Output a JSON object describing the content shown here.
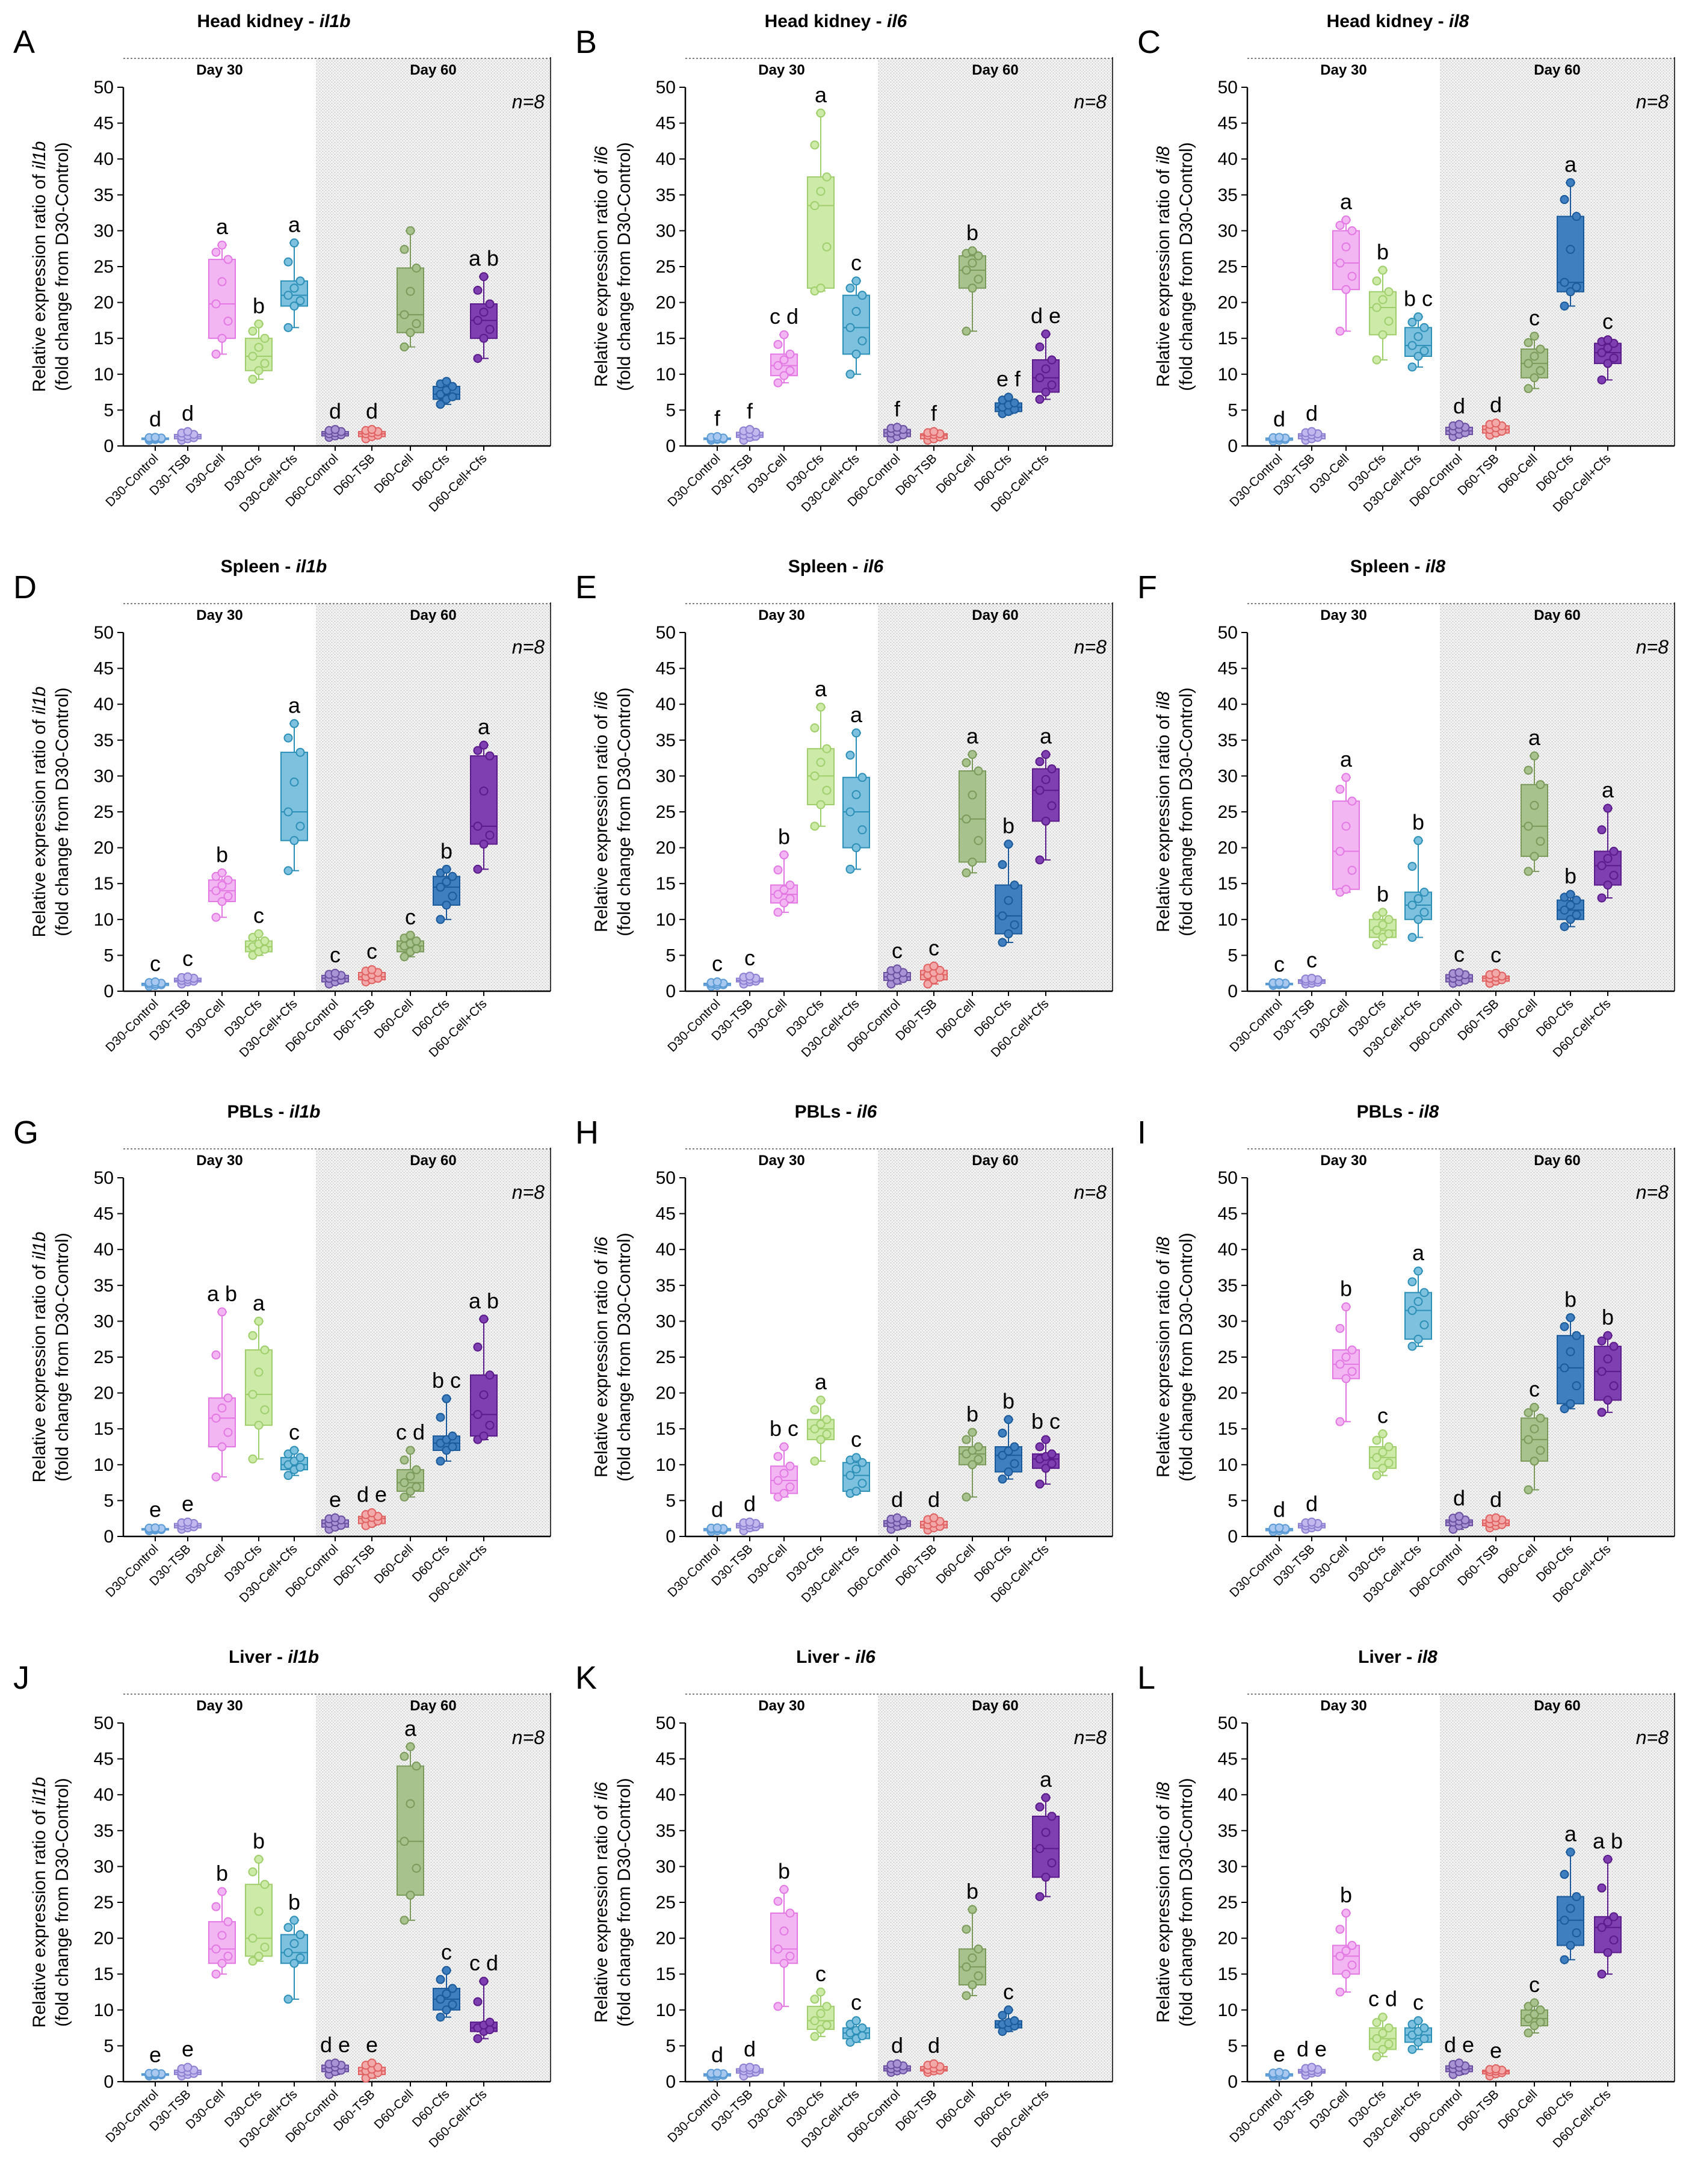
{
  "figure": {
    "common": {
      "categories": [
        "D30-Control",
        "D30-TSB",
        "D30-Cell",
        "D30-Cfs",
        "D30-Cell+Cfs",
        "D60-Control",
        "D60-TSB",
        "D60-Cell",
        "D60-Cfs",
        "D60-Cell+Cfs"
      ],
      "day_labels": [
        "Day 30",
        "Day 60"
      ],
      "n_label": "n=8",
      "ylim": [
        0,
        50
      ],
      "yticks": [
        0,
        5,
        10,
        15,
        20,
        25,
        30,
        35,
        40,
        45,
        50
      ],
      "ylabel_line2": "(fold change from D30-Control)",
      "colors": [
        "#5b9bd5",
        "#8c7fd1",
        "#e377e3",
        "#9fcf6a",
        "#2b8fb8",
        "#6a4fa0",
        "#e06060",
        "#7a9a5a",
        "#1a5a9a",
        "#5a1a8a"
      ],
      "fills": [
        "#a9c8ef",
        "#c2b8ee",
        "#f2b7f2",
        "#cdeaa8",
        "#7ec1de",
        "#a894d4",
        "#f2a9a9",
        "#a8c28e",
        "#3f7fc0",
        "#7e3fb0"
      ]
    }
  },
  "chart_data": [
    {
      "panel": "A",
      "type": "box",
      "title_prefix": "Head kidney - ",
      "gene": "il1b",
      "ylabel_prefix": "Relative expression ratio of ",
      "boxes": [
        [
          0.8,
          0.9,
          1.0,
          1.1,
          1.2
        ],
        [
          0.8,
          1.0,
          1.3,
          1.6,
          2.0
        ],
        [
          12.8,
          15.0,
          19.8,
          26.0,
          28.0
        ],
        [
          9.3,
          10.5,
          12.5,
          15.0,
          17.0
        ],
        [
          16.5,
          19.5,
          21.0,
          23.0,
          28.3
        ],
        [
          1.2,
          1.4,
          1.7,
          2.0,
          2.3
        ],
        [
          1.0,
          1.3,
          1.7,
          2.0,
          2.3
        ],
        [
          13.8,
          15.8,
          18.3,
          24.8,
          30.0
        ],
        [
          5.8,
          6.5,
          7.2,
          8.3,
          9.0
        ],
        [
          12.2,
          15.0,
          17.5,
          19.8,
          23.6
        ]
      ],
      "letters": [
        "d",
        "d",
        "a",
        "b",
        "a",
        "d",
        "d",
        "",
        "",
        "a b"
      ]
    },
    {
      "panel": "B",
      "type": "box",
      "title_prefix": "Head kidney - ",
      "gene": "il6",
      "ylabel_prefix": "Relative expression ratio of ",
      "boxes": [
        [
          0.8,
          0.9,
          1.0,
          1.1,
          1.3
        ],
        [
          0.8,
          1.2,
          1.5,
          1.9,
          2.3
        ],
        [
          8.8,
          9.8,
          11.2,
          12.8,
          15.5
        ],
        [
          21.6,
          22.0,
          33.5,
          37.5,
          46.4
        ],
        [
          10.0,
          12.8,
          16.5,
          21.0,
          23.0
        ],
        [
          1.0,
          1.3,
          1.8,
          2.3,
          2.6
        ],
        [
          0.8,
          1.0,
          1.5,
          1.7,
          2.0
        ],
        [
          16.0,
          22.0,
          24.5,
          26.5,
          27.2
        ],
        [
          4.5,
          4.8,
          5.4,
          6.0,
          6.8
        ],
        [
          6.5,
          7.5,
          9.5,
          12.0,
          15.6
        ]
      ],
      "letters": [
        "f",
        "f",
        "c d",
        "a",
        "c",
        "f",
        "f",
        "b",
        "e f",
        "d e"
      ]
    },
    {
      "panel": "C",
      "type": "box",
      "title_prefix": "Head kidney - ",
      "gene": "il8",
      "ylabel_prefix": "Relative expression ratio of ",
      "boxes": [
        [
          0.7,
          0.8,
          1.0,
          1.1,
          1.2
        ],
        [
          0.8,
          1.0,
          1.4,
          1.7,
          2.0
        ],
        [
          16.0,
          21.8,
          25.5,
          30.0,
          31.5
        ],
        [
          12.0,
          15.5,
          19.3,
          21.5,
          24.5
        ],
        [
          11.0,
          12.5,
          14.0,
          16.5,
          18.0
        ],
        [
          1.3,
          1.6,
          2.1,
          2.6,
          3.0
        ],
        [
          1.5,
          1.8,
          2.3,
          2.8,
          3.2
        ],
        [
          8.0,
          9.5,
          11.5,
          13.5,
          15.3
        ],
        [
          19.5,
          21.5,
          22.8,
          32.0,
          36.7
        ],
        [
          9.2,
          11.5,
          13.0,
          14.3,
          14.8
        ]
      ],
      "letters": [
        "d",
        "d",
        "a",
        "b",
        "b c",
        "d",
        "d",
        "c",
        "a",
        "c"
      ]
    },
    {
      "panel": "D",
      "type": "box",
      "title_prefix": "Spleen - ",
      "gene": "il1b",
      "ylabel_prefix": "Relative expression ratio of ",
      "boxes": [
        [
          0.7,
          0.8,
          1.0,
          1.1,
          1.3
        ],
        [
          1.0,
          1.3,
          1.5,
          1.8,
          2.0
        ],
        [
          10.3,
          12.5,
          14.0,
          15.5,
          16.5
        ],
        [
          5.0,
          5.5,
          6.2,
          7.0,
          8.0
        ],
        [
          16.8,
          21.0,
          25.0,
          33.3,
          37.3
        ],
        [
          1.0,
          1.3,
          1.8,
          2.2,
          2.5
        ],
        [
          1.3,
          1.6,
          2.0,
          2.6,
          3.0
        ],
        [
          4.8,
          5.5,
          6.3,
          7.0,
          7.8
        ],
        [
          10.0,
          12.0,
          14.5,
          16.0,
          17.0
        ],
        [
          17.0,
          20.5,
          23.0,
          32.8,
          34.3
        ]
      ],
      "letters": [
        "c",
        "c",
        "b",
        "c",
        "a",
        "c",
        "c",
        "c",
        "b",
        "a"
      ]
    },
    {
      "panel": "E",
      "type": "box",
      "title_prefix": "Spleen - ",
      "gene": "il6",
      "ylabel_prefix": "Relative expression ratio of ",
      "boxes": [
        [
          0.7,
          0.8,
          1.0,
          1.1,
          1.3
        ],
        [
          1.0,
          1.3,
          1.5,
          1.8,
          2.1
        ],
        [
          11.0,
          12.3,
          13.5,
          14.8,
          19.0
        ],
        [
          23.0,
          26.0,
          30.0,
          33.8,
          39.6
        ],
        [
          17.0,
          20.0,
          25.0,
          29.8,
          36.0
        ],
        [
          1.0,
          1.5,
          2.0,
          2.6,
          3.1
        ],
        [
          1.0,
          1.6,
          2.3,
          2.9,
          3.5
        ],
        [
          16.5,
          18.0,
          24.0,
          30.7,
          33.0
        ],
        [
          6.8,
          8.0,
          10.5,
          14.8,
          20.5
        ],
        [
          18.3,
          23.7,
          28.0,
          31.0,
          33.0
        ]
      ],
      "letters": [
        "c",
        "c",
        "b",
        "a",
        "a",
        "c",
        "c",
        "a",
        "b",
        "a"
      ]
    },
    {
      "panel": "F",
      "type": "box",
      "title_prefix": "Spleen - ",
      "gene": "il8",
      "ylabel_prefix": "Relative expression ratio of ",
      "boxes": [
        [
          0.8,
          0.9,
          1.0,
          1.1,
          1.2
        ],
        [
          1.0,
          1.1,
          1.4,
          1.6,
          1.8
        ],
        [
          13.8,
          14.2,
          19.5,
          26.5,
          29.8
        ],
        [
          6.5,
          7.5,
          8.5,
          10.0,
          11.0
        ],
        [
          7.5,
          10.0,
          12.0,
          13.8,
          21.0
        ],
        [
          1.1,
          1.3,
          1.8,
          2.3,
          2.6
        ],
        [
          1.1,
          1.4,
          1.8,
          2.1,
          2.5
        ],
        [
          16.7,
          18.8,
          23.0,
          28.8,
          32.8
        ],
        [
          9.0,
          10.0,
          11.3,
          12.7,
          13.5
        ],
        [
          13.0,
          14.8,
          17.5,
          19.5,
          25.5
        ]
      ],
      "letters": [
        "c",
        "c",
        "a",
        "b",
        "b",
        "c",
        "c",
        "a",
        "b",
        "a"
      ]
    },
    {
      "panel": "G",
      "type": "box",
      "title_prefix": "PBLs - ",
      "gene": "il1b",
      "ylabel_prefix": "Relative expression ratio of ",
      "boxes": [
        [
          0.8,
          0.9,
          1.0,
          1.1,
          1.2
        ],
        [
          1.0,
          1.2,
          1.5,
          1.8,
          2.0
        ],
        [
          8.3,
          12.5,
          16.5,
          19.3,
          31.3
        ],
        [
          10.8,
          15.5,
          19.8,
          26.0,
          30.0
        ],
        [
          8.5,
          9.3,
          10.0,
          11.0,
          12.0
        ],
        [
          1.0,
          1.3,
          1.8,
          2.3,
          2.6
        ],
        [
          1.5,
          1.8,
          2.5,
          2.8,
          3.3
        ],
        [
          5.5,
          6.3,
          7.5,
          9.3,
          12.0
        ],
        [
          10.5,
          12.0,
          13.0,
          14.0,
          19.2
        ],
        [
          13.5,
          14.0,
          17.0,
          22.5,
          30.3
        ]
      ],
      "letters": [
        "e",
        "e",
        "a b",
        "a",
        "c",
        "e",
        "d e",
        "c d",
        "b c",
        "a b"
      ]
    },
    {
      "panel": "H",
      "type": "box",
      "title_prefix": "PBLs - ",
      "gene": "il6",
      "ylabel_prefix": "Relative expression ratio of ",
      "boxes": [
        [
          0.7,
          0.8,
          1.0,
          1.1,
          1.2
        ],
        [
          0.8,
          1.2,
          1.5,
          1.8,
          2.0
        ],
        [
          5.5,
          6.0,
          7.8,
          9.8,
          12.5
        ],
        [
          10.5,
          13.5,
          15.0,
          16.3,
          19.0
        ],
        [
          6.0,
          6.3,
          8.5,
          10.3,
          11.0
        ],
        [
          1.0,
          1.4,
          1.8,
          2.2,
          2.6
        ],
        [
          0.9,
          1.2,
          1.6,
          2.1,
          2.6
        ],
        [
          5.5,
          10.0,
          11.5,
          12.5,
          14.5
        ],
        [
          8.0,
          9.0,
          11.3,
          12.5,
          16.3
        ],
        [
          7.3,
          9.5,
          10.8,
          11.5,
          13.5
        ]
      ],
      "letters": [
        "d",
        "d",
        "b c",
        "a",
        "c",
        "d",
        "d",
        "b",
        "b",
        "b c"
      ]
    },
    {
      "panel": "I",
      "type": "box",
      "title_prefix": "PBLs - ",
      "gene": "il8",
      "ylabel_prefix": "Relative expression ratio of ",
      "boxes": [
        [
          0.7,
          0.8,
          1.0,
          1.1,
          1.2
        ],
        [
          1.0,
          1.2,
          1.5,
          1.8,
          2.0
        ],
        [
          16.0,
          22.0,
          24.0,
          26.0,
          32.0
        ],
        [
          8.5,
          9.5,
          11.0,
          12.5,
          14.3
        ],
        [
          26.5,
          27.5,
          31.5,
          34.0,
          37.0
        ],
        [
          1.0,
          1.5,
          2.0,
          2.3,
          2.8
        ],
        [
          1.2,
          1.5,
          1.8,
          2.3,
          2.6
        ],
        [
          6.5,
          10.5,
          13.5,
          16.5,
          18.0
        ],
        [
          17.8,
          18.5,
          23.5,
          28.0,
          30.5
        ],
        [
          17.3,
          19.0,
          23.0,
          26.5,
          28.0
        ]
      ],
      "letters": [
        "d",
        "d",
        "b",
        "c",
        "a",
        "d",
        "d",
        "c",
        "b",
        "b"
      ]
    },
    {
      "panel": "J",
      "type": "box",
      "title_prefix": "Liver - ",
      "gene": "il1b",
      "ylabel_prefix": "Relative expression ratio of ",
      "boxes": [
        [
          0.8,
          0.9,
          1.0,
          1.1,
          1.2
        ],
        [
          0.8,
          1.0,
          1.3,
          1.6,
          2.0
        ],
        [
          15.0,
          16.5,
          18.5,
          22.3,
          26.5
        ],
        [
          16.8,
          17.5,
          20.0,
          27.5,
          31.0
        ],
        [
          11.5,
          16.5,
          18.0,
          20.5,
          22.5
        ],
        [
          1.0,
          1.4,
          1.8,
          2.3,
          2.6
        ],
        [
          0.5,
          1.0,
          1.5,
          2.0,
          2.6
        ],
        [
          22.5,
          26.0,
          33.5,
          44.0,
          46.7
        ],
        [
          9.0,
          10.0,
          11.5,
          13.0,
          15.5
        ],
        [
          6.0,
          7.0,
          7.5,
          8.3,
          14.0
        ]
      ],
      "letters": [
        "e",
        "e",
        "b",
        "b",
        "b",
        "d e",
        "e",
        "a",
        "c",
        "c d"
      ]
    },
    {
      "panel": "K",
      "type": "box",
      "title_prefix": "Liver - ",
      "gene": "il6",
      "ylabel_prefix": "Relative expression ratio of ",
      "boxes": [
        [
          0.7,
          0.8,
          1.0,
          1.1,
          1.2
        ],
        [
          0.8,
          1.2,
          1.5,
          1.8,
          2.0
        ],
        [
          10.5,
          16.5,
          18.5,
          23.5,
          26.8
        ],
        [
          6.3,
          7.3,
          8.5,
          10.5,
          12.5
        ],
        [
          5.5,
          6.0,
          6.8,
          7.5,
          8.5
        ],
        [
          1.3,
          1.5,
          1.8,
          2.2,
          2.5
        ],
        [
          1.3,
          1.5,
          1.7,
          2.1,
          2.5
        ],
        [
          12.0,
          13.5,
          16.0,
          18.5,
          24.0
        ],
        [
          7.0,
          7.5,
          8.0,
          8.5,
          10.0
        ],
        [
          25.8,
          28.5,
          32.5,
          37.0,
          39.6
        ]
      ],
      "letters": [
        "d",
        "d",
        "b",
        "c",
        "c",
        "d",
        "d",
        "b",
        "c",
        "a"
      ]
    },
    {
      "panel": "L",
      "type": "box",
      "title_prefix": "Liver - ",
      "gene": "il8",
      "ylabel_prefix": "Relative expression ratio of ",
      "boxes": [
        [
          0.7,
          0.8,
          1.0,
          1.1,
          1.3
        ],
        [
          0.9,
          1.2,
          1.4,
          1.7,
          2.0
        ],
        [
          12.5,
          15.0,
          17.5,
          19.0,
          23.5
        ],
        [
          3.5,
          4.5,
          6.0,
          7.5,
          9.0
        ],
        [
          4.5,
          5.5,
          6.5,
          7.5,
          8.5
        ],
        [
          1.0,
          1.4,
          1.8,
          2.2,
          2.6
        ],
        [
          0.8,
          1.1,
          1.4,
          1.6,
          1.8
        ],
        [
          6.8,
          7.8,
          8.8,
          10.0,
          11.0
        ],
        [
          17.0,
          19.0,
          22.5,
          25.8,
          32.0
        ],
        [
          15.0,
          18.0,
          21.5,
          23.0,
          31.0
        ]
      ],
      "letters": [
        "e",
        "d e",
        "b",
        "c d",
        "c",
        "d e",
        "e",
        "c",
        "a",
        "a b"
      ]
    }
  ]
}
